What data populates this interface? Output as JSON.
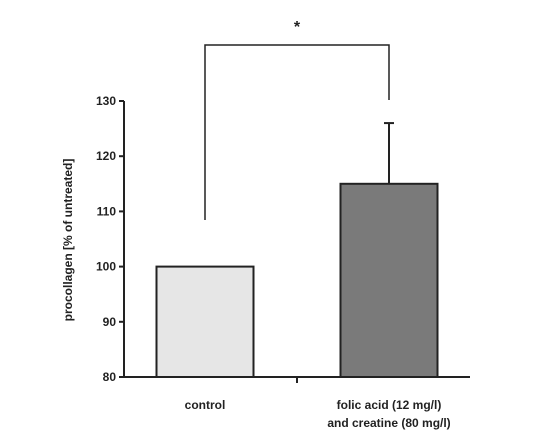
{
  "chart_data": {
    "type": "bar",
    "categories": [
      [
        "control"
      ],
      [
        "folic acid (12 mg/l)",
        "and creatine (80 mg/l)"
      ]
    ],
    "values": [
      100,
      115
    ],
    "errors": [
      null,
      11
    ],
    "colors": [
      "#e6e6e6",
      "#7a7a7a"
    ],
    "ylabel": "procollagen [% of untreated]",
    "ylim": [
      80,
      130
    ],
    "yticks": [
      80,
      90,
      100,
      110,
      120,
      130
    ],
    "significance": {
      "label": "*",
      "between": [
        0,
        1
      ]
    },
    "grid": false
  }
}
